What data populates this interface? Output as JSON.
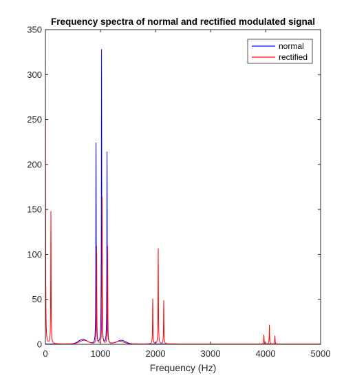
{
  "chart_data": {
    "type": "line",
    "title": "Frequency spectra of normal and rectified modulated signal",
    "xlabel": "Frequency (Hz)",
    "ylabel": "",
    "xlim": [
      0,
      5000
    ],
    "ylim": [
      0,
      350
    ],
    "xticks": [
      0,
      1000,
      2000,
      3000,
      4000,
      5000
    ],
    "yticks": [
      0,
      50,
      100,
      150,
      200,
      250,
      300,
      350
    ],
    "grid": false,
    "legend": {
      "position": "top-right"
    },
    "series": [
      {
        "name": "normal",
        "color": "#0000ff",
        "peaks": [
          {
            "x": 920,
            "y": 223
          },
          {
            "x": 1020,
            "y": 327
          },
          {
            "x": 1120,
            "y": 213
          }
        ],
        "humps": [
          {
            "x": 680,
            "y": 5
          },
          {
            "x": 1380,
            "y": 4
          }
        ]
      },
      {
        "name": "rectified",
        "color": "#ff0000",
        "peaks": [
          {
            "x": 0,
            "y": 317
          },
          {
            "x": 100,
            "y": 147
          },
          {
            "x": 930,
            "y": 108
          },
          {
            "x": 1030,
            "y": 163
          },
          {
            "x": 1130,
            "y": 108
          },
          {
            "x": 1950,
            "y": 50
          },
          {
            "x": 2050,
            "y": 106
          },
          {
            "x": 2150,
            "y": 48
          },
          {
            "x": 3970,
            "y": 10
          },
          {
            "x": 4070,
            "y": 21
          },
          {
            "x": 4170,
            "y": 9
          }
        ],
        "humps": [
          {
            "x": 700,
            "y": 4
          },
          {
            "x": 1350,
            "y": 3
          }
        ]
      }
    ]
  }
}
